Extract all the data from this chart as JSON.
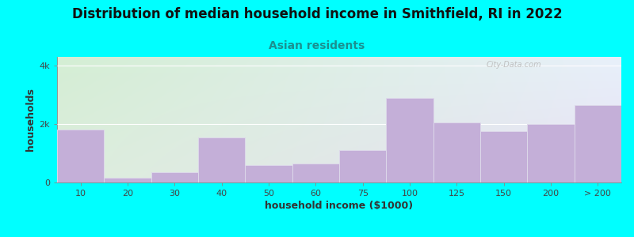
{
  "title": "Distribution of median household income in Smithfield, RI in 2022",
  "subtitle": "Asian residents",
  "xlabel": "household income ($1000)",
  "ylabel": "households",
  "background_color": "#00FFFF",
  "bar_color": "#c4afd8",
  "bar_edge_color": "#ddd8ea",
  "grid_color": "#ffffff",
  "categories": [
    "10",
    "20",
    "30",
    "40",
    "50",
    "60",
    "75",
    "100",
    "125",
    "150",
    "200",
    "> 200"
  ],
  "values": [
    1800,
    150,
    350,
    1550,
    600,
    650,
    1100,
    2900,
    2050,
    1750,
    2000,
    2650
  ],
  "yticks": [
    0,
    2000,
    4000
  ],
  "ytick_labels": [
    "0",
    "2k",
    "4k"
  ],
  "ylim": [
    0,
    4300
  ],
  "title_fontsize": 12,
  "subtitle_fontsize": 10,
  "axis_label_fontsize": 9,
  "tick_fontsize": 8,
  "watermark": "City-Data.com",
  "grad_top_color": "#d4eed4",
  "grad_bottom_color": "#e8e0f4",
  "grad_right_color": "#e8f0fa"
}
